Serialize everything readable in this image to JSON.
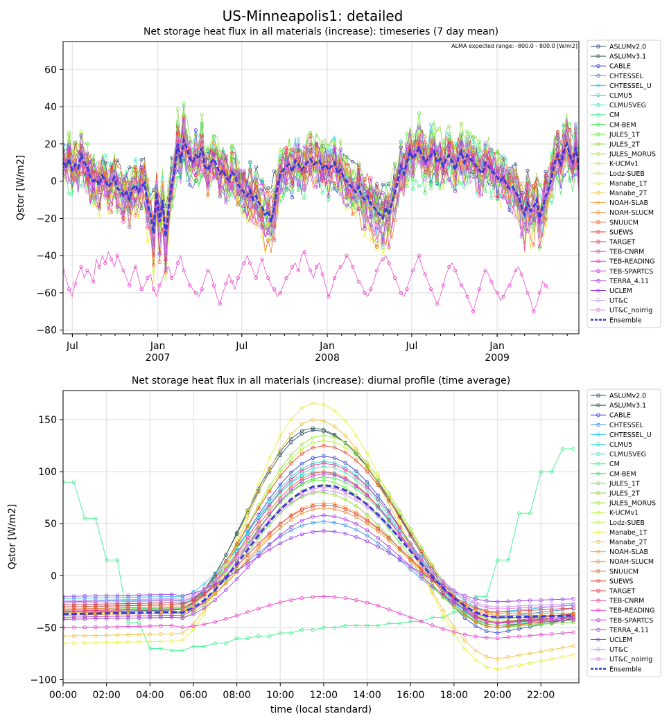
{
  "figure": {
    "title": "US-Minneapolis1: detailed"
  },
  "series_names": [
    "ASLUMv2.0",
    "ASLUMv3.1",
    "CABLE",
    "CHTESSEL",
    "CHTESSEL_U",
    "CLMU5",
    "CLMU5VEG",
    "CM",
    "CM-BEM",
    "JULES_1T",
    "JULES_2T",
    "JULES_MORUS",
    "K-UCMv1",
    "Lodz-SUEB",
    "Manabe_1T",
    "Manabe_2T",
    "NOAH-SLAB",
    "NOAH-SLUCM",
    "SNUUCM",
    "SUEWS",
    "TARGET",
    "TEB-CNRM",
    "TEB-READING",
    "TEB-SPARTCS",
    "TERRA_4.11",
    "UCLEM",
    "UT&C",
    "UT&C_noirrig",
    "Ensemble"
  ],
  "series_colors": [
    "#2b4a6f",
    "#2e5e4e",
    "#2f3fd6",
    "#3a8fe8",
    "#33c7f0",
    "#2fd8d0",
    "#36e8b8",
    "#39f08a",
    "#3ee04a",
    "#62e83a",
    "#8cd83a",
    "#9ee83a",
    "#b8f03a",
    "#c8f07a",
    "#e8f03a",
    "#f0c23a",
    "#f0a23a",
    "#f08a2a",
    "#f0602a",
    "#f0402a",
    "#e83a4a",
    "#e83a9a",
    "#e83ac8",
    "#c83ae8",
    "#a83ae8",
    "#9a3ae8",
    "#c89ae8",
    "#d87ae8",
    "#3a3ad8"
  ],
  "chart_data": [
    {
      "type": "line",
      "title": "Net storage heat flux in all materials (increase): timeseries (7 day mean)",
      "annotation": "ALMA expected range: -800.0 - 800.0 [W/m2]",
      "ylabel": "Qstor [W/m2]",
      "xlabel": "",
      "ylim": [
        -82,
        75
      ],
      "xlim": [
        "2006-06-11",
        "2009-06-26"
      ],
      "yticks": [
        -80,
        -60,
        -40,
        -20,
        0,
        20,
        40,
        60
      ],
      "xticks": [
        {
          "date": "2006-07-01",
          "label": "Jul",
          "sublabel": ""
        },
        {
          "date": "2007-01-01",
          "label": "Jan",
          "sublabel": "2007"
        },
        {
          "date": "2007-07-01",
          "label": "Jul",
          "sublabel": ""
        },
        {
          "date": "2008-01-01",
          "label": "Jan",
          "sublabel": "2008"
        },
        {
          "date": "2008-07-01",
          "label": "Jul",
          "sublabel": ""
        },
        {
          "date": "2009-01-01",
          "label": "Jan",
          "sublabel": "2009"
        }
      ],
      "grid": true,
      "legend": "outside-right",
      "ensemble_weekly": [
        10,
        8,
        12,
        6,
        9,
        7,
        14,
        10,
        8,
        2,
        0,
        1,
        -2,
        3,
        0,
        -3,
        -1,
        2,
        -4,
        -5,
        -8,
        -6,
        -10,
        -4,
        -2,
        -6,
        -3,
        -1,
        -12,
        -18,
        -28,
        -6,
        -22,
        -10,
        -30,
        -14,
        -2,
        6,
        20,
        10,
        22,
        18,
        12,
        10,
        14,
        12,
        18,
        8,
        6,
        10,
        12,
        8,
        4,
        6,
        2,
        0,
        5,
        3,
        -2,
        -4,
        -6,
        -8,
        -5,
        -10,
        -8,
        -12,
        -14,
        -18,
        -16,
        -22,
        -14,
        -4,
        4,
        6,
        8,
        9,
        5,
        11,
        9,
        6,
        8,
        10,
        12,
        9,
        10,
        11,
        7,
        9,
        6,
        8,
        10,
        4,
        6,
        2,
        0,
        -2,
        -4,
        -6,
        -3,
        -8,
        -10,
        -8,
        -12,
        -14,
        -16,
        -18,
        -20,
        -14,
        -18,
        -12,
        -6,
        0,
        8,
        4,
        10,
        16,
        12,
        15,
        18,
        14,
        10,
        12,
        14,
        16,
        10,
        12,
        8,
        12,
        14,
        10,
        6,
        12,
        16,
        10,
        14,
        12,
        10,
        8,
        6,
        4,
        10,
        8,
        6,
        4,
        2,
        0,
        2,
        -2,
        -4,
        -3,
        -6,
        -8,
        -14,
        -18,
        -12,
        -16,
        -14,
        -10,
        -20,
        -14,
        -8,
        -4,
        2,
        10,
        14,
        8,
        16,
        20,
        14,
        10,
        18,
        6
      ],
      "outlier_series": "TEB-READING",
      "outlier_weekly": [
        -48,
        -52,
        -58,
        -62,
        -55,
        -50,
        -46,
        -52,
        -48,
        -50,
        -54,
        -42,
        -46,
        -40,
        -44,
        -38,
        -42,
        -46,
        -40,
        -44,
        -48,
        -52,
        -56,
        -50,
        -46,
        -52,
        -58,
        -56,
        -52,
        -50,
        -58,
        -62,
        -56,
        -52,
        -48,
        -46,
        -52,
        -50,
        -44,
        -40,
        -48,
        -52,
        -56,
        -58,
        -60,
        -62,
        -58,
        -52,
        -48,
        -50,
        -56,
        -62,
        -66,
        -60,
        -55,
        -50,
        -54,
        -58,
        -52,
        -48,
        -44,
        -40,
        -44,
        -48,
        -52,
        -46,
        -42,
        -48,
        -52,
        -56,
        -58,
        -62,
        -60,
        -56,
        -52,
        -50,
        -46,
        -44,
        -48,
        -40,
        -38,
        -44,
        -48,
        -52,
        -46,
        -44,
        -50,
        -56,
        -62,
        -58,
        -52,
        -48,
        -46,
        -44,
        -40,
        -42,
        -46,
        -50,
        -54,
        -56,
        -60,
        -62,
        -58,
        -54,
        -48,
        -44,
        -42,
        -40,
        -44,
        -48,
        -52,
        -56,
        -60,
        -62,
        -58,
        -52,
        -48,
        -44,
        -40,
        -46,
        -50,
        -54,
        -58,
        -62,
        -66,
        -62,
        -56,
        -50,
        -46,
        -44,
        -48,
        -52,
        -56,
        -58,
        -62,
        -66,
        -70,
        -64,
        -58,
        -52,
        -48,
        -50,
        -54,
        -58,
        -60,
        -64,
        -62,
        -58,
        -56,
        -52,
        -48,
        -46,
        -50,
        -55,
        -60,
        -64,
        -70,
        -66,
        -60,
        -54,
        -56,
        -58
      ]
    },
    {
      "type": "line",
      "title": "Net storage heat flux in all materials (increase): diurnal profile (time average)",
      "ylabel": "Qstor [W/m2]",
      "xlabel": "time (local standard)",
      "ylim": [
        -103,
        178
      ],
      "xlim": [
        0,
        23.75
      ],
      "yticks": [
        -100,
        -50,
        0,
        50,
        100,
        150
      ],
      "xticks": [
        {
          "hour": 0,
          "label": "00:00"
        },
        {
          "hour": 2,
          "label": "02:00"
        },
        {
          "hour": 4,
          "label": "04:00"
        },
        {
          "hour": 6,
          "label": "06:00"
        },
        {
          "hour": 8,
          "label": "08:00"
        },
        {
          "hour": 10,
          "label": "10:00"
        },
        {
          "hour": 12,
          "label": "12:00"
        },
        {
          "hour": 14,
          "label": "14:00"
        },
        {
          "hour": 16,
          "label": "16:00"
        },
        {
          "hour": 18,
          "label": "18:00"
        },
        {
          "hour": 20,
          "label": "20:00"
        },
        {
          "hour": 22,
          "label": "22:00"
        }
      ],
      "grid": true,
      "legend": "outside-right",
      "series": [
        {
          "name": "ASLUMv2.0",
          "night": -35,
          "peak": 140,
          "peak_hour": 11.6,
          "evening_min": -45
        },
        {
          "name": "ASLUMv3.1",
          "night": -38,
          "peak": 142,
          "peak_hour": 11.5,
          "evening_min": -48
        },
        {
          "name": "CABLE",
          "night": -30,
          "peak": 115,
          "peak_hour": 12.0,
          "evening_min": -55
        },
        {
          "name": "CHTESSEL",
          "night": -25,
          "peak": 52,
          "peak_hour": 12.0,
          "evening_min": -40
        },
        {
          "name": "CHTESSEL_U",
          "night": -22,
          "peak": 100,
          "peak_hour": 11.8,
          "evening_min": -35
        },
        {
          "name": "CLMU5",
          "night": -28,
          "peak": 110,
          "peak_hour": 12.0,
          "evening_min": -50
        },
        {
          "name": "CLMU5VEG",
          "night": -30,
          "peak": 105,
          "peak_hour": 12.0,
          "evening_min": -48
        },
        {
          "name": "CM",
          "night": -35,
          "peak": 90,
          "peak_hour": 12.0,
          "evening_min": -40
        },
        {
          "name": "CM-BEM",
          "night": -33,
          "peak": 95,
          "peak_hour": 12.0,
          "evening_min": -42
        },
        {
          "name": "JULES_1T",
          "night": -40,
          "peak": 92,
          "peak_hour": 11.8,
          "evening_min": -50
        },
        {
          "name": "JULES_2T",
          "night": -42,
          "peak": 80,
          "peak_hour": 11.8,
          "evening_min": -48
        },
        {
          "name": "JULES_MORUS",
          "night": -38,
          "peak": 135,
          "peak_hour": 12.0,
          "evening_min": -45
        },
        {
          "name": "K-UCMv1",
          "night": -36,
          "peak": 130,
          "peak_hour": 12.0,
          "evening_min": -44
        },
        {
          "name": "Lodz-SUEB",
          "night": -34,
          "peak": 88,
          "peak_hour": 12.0,
          "evening_min": -42
        },
        {
          "name": "Manabe_1T",
          "night": -65,
          "peak": 166,
          "peak_hour": 11.6,
          "evening_min": -90
        },
        {
          "name": "Manabe_2T",
          "night": -58,
          "peak": 150,
          "peak_hour": 11.6,
          "evening_min": -80
        },
        {
          "name": "NOAH-SLAB",
          "night": -38,
          "peak": 70,
          "peak_hour": 12.0,
          "evening_min": -38
        },
        {
          "name": "NOAH-SLUCM",
          "night": -36,
          "peak": 65,
          "peak_hour": 12.0,
          "evening_min": -36
        },
        {
          "name": "SNUUCM",
          "night": -32,
          "peak": 100,
          "peak_hour": 12.0,
          "evening_min": -50
        },
        {
          "name": "SUEWS",
          "night": -30,
          "peak": 125,
          "peak_hour": 12.0,
          "evening_min": -45
        },
        {
          "name": "TARGET",
          "night": -28,
          "peak": 68,
          "peak_hour": 12.0,
          "evening_min": -35
        },
        {
          "name": "TEB-CNRM",
          "night": -34,
          "peak": 108,
          "peak_hour": 12.0,
          "evening_min": -46
        },
        {
          "name": "TEB-READING",
          "night": -50,
          "peak": -20,
          "peak_hour": 12.0,
          "evening_min": -60
        },
        {
          "name": "TEB-SPARTCS",
          "night": -40,
          "peak": 98,
          "peak_hour": 12.0,
          "evening_min": -45
        },
        {
          "name": "TERRA_4.11",
          "night": -42,
          "peak": 58,
          "peak_hour": 12.0,
          "evening_min": -40
        },
        {
          "name": "UCLEM",
          "night": -20,
          "peak": 43,
          "peak_hour": 12.0,
          "evening_min": -25
        },
        {
          "name": "UT&C",
          "night": -24,
          "peak": 82,
          "peak_hour": 12.0,
          "evening_min": -30
        },
        {
          "name": "UT&C_noirrig",
          "night": -26,
          "peak": 85,
          "peak_hour": 12.0,
          "evening_min": -32
        },
        {
          "name": "Ensemble",
          "night": -37,
          "peak": 87,
          "peak_hour": 12.0,
          "evening_min": -40
        }
      ],
      "cm_hourly": [
        90,
        90,
        55,
        55,
        15,
        15,
        -45,
        -45,
        -70,
        -70,
        -72,
        -72,
        -68,
        -68,
        -65,
        -65,
        -60,
        -60,
        -58,
        -58,
        -55,
        -55,
        -52,
        -52,
        -50,
        -50,
        -48,
        -48,
        -48,
        -48,
        -46,
        -46,
        -44,
        -44,
        -40,
        -40,
        -35,
        -35,
        -20,
        -20,
        15,
        15,
        60,
        60,
        100,
        100,
        122,
        122
      ]
    }
  ]
}
